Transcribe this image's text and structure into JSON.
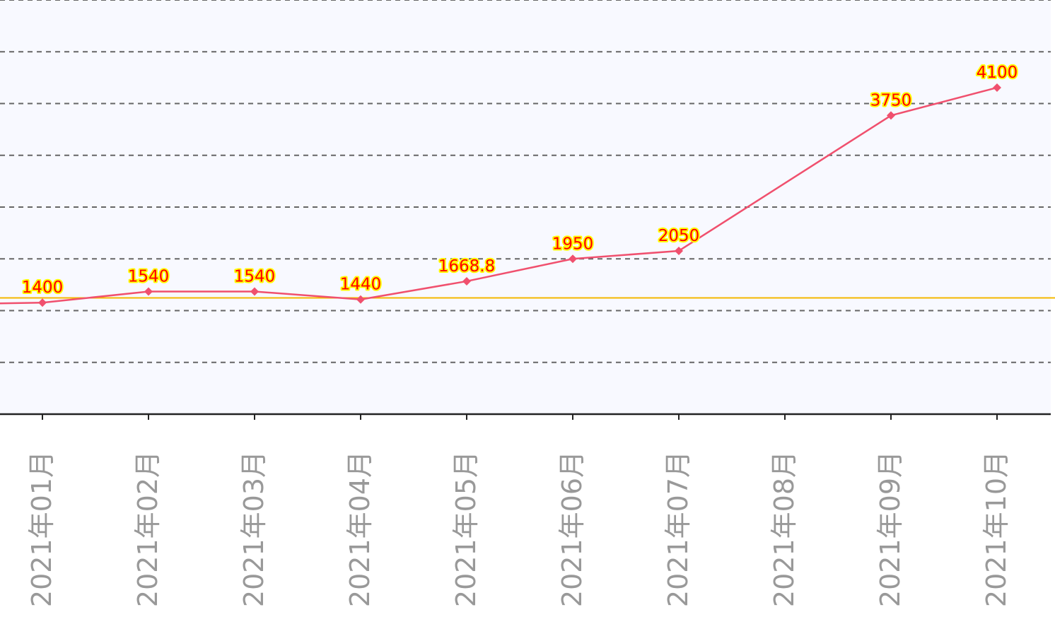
{
  "chart_data": {
    "type": "line",
    "categories": [
      "2021年01月",
      "2021年02月",
      "2021年03月",
      "2021年04月",
      "2021年05月",
      "2021年06月",
      "2021年07月",
      "2021年08月",
      "2021年09月",
      "2021年10月"
    ],
    "series": [
      {
        "values": [
          1400,
          1540,
          1540,
          1440,
          1668.8,
          1950,
          2050,
          null,
          3750,
          4100
        ],
        "labels": [
          "1400",
          "1540",
          "1540",
          "1440",
          "1668.8",
          "1950",
          "2050",
          "",
          "3750",
          "4100"
        ],
        "color": "#f0506e",
        "label_color": "#ff0000",
        "label_fill": "#ffff00"
      }
    ],
    "reference_line": {
      "value": 1460,
      "color": "#f5b800"
    },
    "grid": true,
    "gridlines": [
      0,
      650,
      1300,
      1950,
      2600,
      3250,
      3900,
      4550,
      5200
    ],
    "ylim": [
      0,
      5200
    ],
    "colors": {
      "plot_background": "#f8f9ff",
      "grid": "#666666",
      "axis": "#222222",
      "tick_label": "#999999"
    }
  }
}
